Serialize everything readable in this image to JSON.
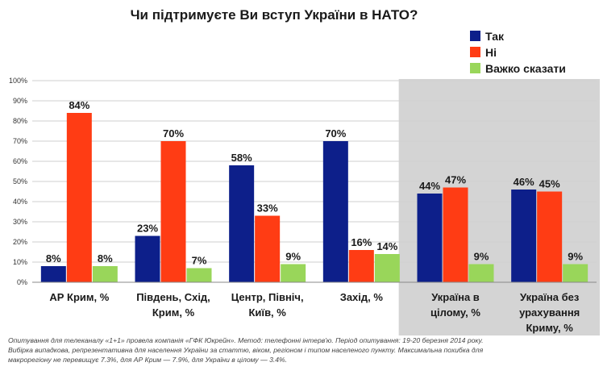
{
  "chart_data": {
    "type": "bar",
    "title": "Чи підтримуєте Ви вступ України в НАТО?",
    "ylim": [
      0,
      100
    ],
    "yticks": [
      "0%",
      "10%",
      "20%",
      "30%",
      "40%",
      "50%",
      "60%",
      "70%",
      "80%",
      "90%",
      "100%"
    ],
    "categories": [
      [
        "АР Крим, %"
      ],
      [
        "Південь, Схід,",
        "Крим, %"
      ],
      [
        "Центр, Північ,",
        "Київ, %"
      ],
      [
        "Захід, %"
      ],
      [
        "Україна в",
        "цілому, %"
      ],
      [
        "Україна  без",
        "урахування",
        "Криму, %"
      ]
    ],
    "series": [
      {
        "name": "Так",
        "color": "#0d1f8a",
        "values": [
          8,
          23,
          58,
          70,
          44,
          46
        ],
        "labels": [
          "8%",
          "23%",
          "58%",
          "70%",
          "44%",
          "46%"
        ]
      },
      {
        "name": "Ні",
        "color": "#ff3c14",
        "values": [
          84,
          70,
          33,
          16,
          47,
          45
        ],
        "labels": [
          "84%",
          "70%",
          "33%",
          "16%",
          "47%",
          "45%"
        ]
      },
      {
        "name": "Важко сказати",
        "color": "#99d65a",
        "values": [
          8,
          7,
          9,
          14,
          9,
          9
        ],
        "labels": [
          "8%",
          "7%",
          "9%",
          "14%",
          "9%",
          "9%"
        ]
      }
    ],
    "highlight_categories": [
      4,
      5
    ],
    "highlight_color": "#d4d4d4"
  },
  "footnote": {
    "line1": "Опитування для телеканалу «1+1» провела компанія «ГФК Юкрейн». Метод: телефонні інтерв'ю. Період опитування: 19-20 березня 2014  року.",
    "line2": "Вибірка випадкова, репрезентативна для населення України за статтю, віком, регіоном і типом населеного пункту. Максимальна похибка для",
    "line3": "макрорегіону не перевищує 7.3%, для АР Крим — 7.9%, для України в цілому — 3.4%."
  }
}
